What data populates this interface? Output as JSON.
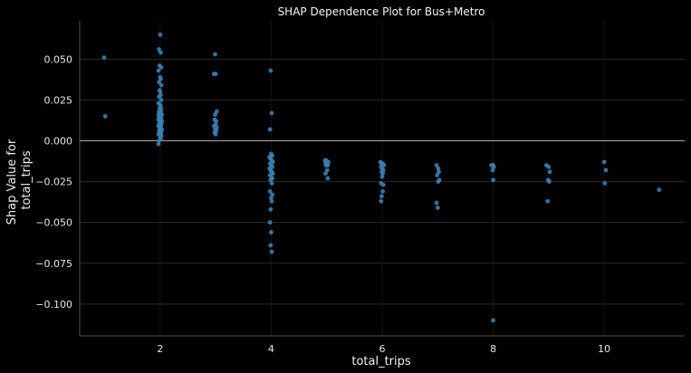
{
  "chart_data": {
    "type": "scatter",
    "title": "SHAP Dependence Plot for Bus+Metro",
    "xlabel": "total_trips",
    "ylabel_lines": [
      "Shap Value for",
      "total_trips"
    ],
    "xlim": [
      0.55,
      11.45
    ],
    "ylim": [
      -0.1195,
      0.0735
    ],
    "xticks": [
      2,
      4,
      6,
      8,
      10
    ],
    "yticks": [
      0.05,
      0.025,
      0.0,
      -0.025,
      -0.05,
      -0.075,
      -0.1
    ],
    "ytick_labels": [
      "0.050",
      "0.025",
      "0.000",
      "−0.025",
      "−0.050",
      "−0.075",
      "−0.100"
    ],
    "grid": true,
    "zero_line": true,
    "colors": {
      "background": "#000000",
      "point": "#3a7fb0",
      "grid": "#2a2a2a",
      "axis": "#555555",
      "zero_line": "#aaaaaa"
    },
    "points": [
      [
        0.99,
        0.051
      ],
      [
        1.01,
        0.015
      ],
      [
        2.0,
        0.065
      ],
      [
        1.98,
        0.056
      ],
      [
        2.01,
        0.054
      ],
      [
        1.99,
        0.046
      ],
      [
        2.02,
        0.045
      ],
      [
        1.97,
        0.043
      ],
      [
        2.0,
        0.039
      ],
      [
        2.01,
        0.038
      ],
      [
        1.98,
        0.036
      ],
      [
        2.02,
        0.034
      ],
      [
        1.99,
        0.031
      ],
      [
        2.0,
        0.03
      ],
      [
        2.01,
        0.028
      ],
      [
        1.98,
        0.027
      ],
      [
        2.02,
        0.025
      ],
      [
        1.97,
        0.023
      ],
      [
        2.0,
        0.022
      ],
      [
        2.01,
        0.021
      ],
      [
        1.99,
        0.02
      ],
      [
        2.02,
        0.019
      ],
      [
        1.98,
        0.018
      ],
      [
        2.0,
        0.017
      ],
      [
        2.01,
        0.017
      ],
      [
        1.97,
        0.016
      ],
      [
        2.03,
        0.016
      ],
      [
        1.99,
        0.015
      ],
      [
        2.0,
        0.015
      ],
      [
        2.02,
        0.014
      ],
      [
        1.98,
        0.014
      ],
      [
        2.01,
        0.013
      ],
      [
        1.97,
        0.013
      ],
      [
        2.0,
        0.012
      ],
      [
        2.03,
        0.012
      ],
      [
        1.99,
        0.011
      ],
      [
        2.01,
        0.011
      ],
      [
        1.98,
        0.01
      ],
      [
        2.02,
        0.01
      ],
      [
        2.0,
        0.009
      ],
      [
        1.97,
        0.009
      ],
      [
        2.01,
        0.008
      ],
      [
        1.99,
        0.008
      ],
      [
        2.03,
        0.007
      ],
      [
        2.0,
        0.007
      ],
      [
        1.98,
        0.006
      ],
      [
        2.02,
        0.006
      ],
      [
        2.01,
        0.005
      ],
      [
        1.99,
        0.005
      ],
      [
        2.0,
        0.004
      ],
      [
        1.97,
        0.004
      ],
      [
        2.02,
        0.003
      ],
      [
        2.0,
        0.002
      ],
      [
        2.01,
        0.001
      ],
      [
        1.98,
        0.0
      ],
      [
        1.97,
        -0.002
      ],
      [
        2.99,
        0.053
      ],
      [
        2.97,
        0.041
      ],
      [
        3.0,
        0.041
      ],
      [
        3.02,
        0.018
      ],
      [
        2.99,
        0.016
      ],
      [
        2.98,
        0.013
      ],
      [
        3.01,
        0.012
      ],
      [
        3.0,
        0.01
      ],
      [
        2.97,
        0.009
      ],
      [
        3.02,
        0.008
      ],
      [
        2.99,
        0.007
      ],
      [
        3.01,
        0.006
      ],
      [
        2.98,
        0.005
      ],
      [
        3.0,
        0.004
      ],
      [
        3.99,
        0.043
      ],
      [
        4.01,
        0.017
      ],
      [
        3.98,
        0.007
      ],
      [
        4.0,
        -0.008
      ],
      [
        4.02,
        -0.009
      ],
      [
        3.97,
        -0.01
      ],
      [
        3.99,
        -0.011
      ],
      [
        4.01,
        -0.012
      ],
      [
        4.03,
        -0.013
      ],
      [
        3.98,
        -0.014
      ],
      [
        4.0,
        -0.015
      ],
      [
        4.02,
        -0.016
      ],
      [
        3.97,
        -0.017
      ],
      [
        3.99,
        -0.018
      ],
      [
        4.01,
        -0.019
      ],
      [
        4.03,
        -0.02
      ],
      [
        3.98,
        -0.021
      ],
      [
        4.0,
        -0.022
      ],
      [
        4.02,
        -0.023
      ],
      [
        3.99,
        -0.024
      ],
      [
        4.01,
        -0.026
      ],
      [
        3.98,
        -0.031
      ],
      [
        4.02,
        -0.033
      ],
      [
        4.0,
        -0.035
      ],
      [
        4.01,
        -0.037
      ],
      [
        3.99,
        -0.042
      ],
      [
        3.98,
        -0.05
      ],
      [
        4.0,
        -0.056
      ],
      [
        3.99,
        -0.064
      ],
      [
        4.01,
        -0.068
      ],
      [
        4.97,
        -0.012
      ],
      [
        4.99,
        -0.012
      ],
      [
        5.01,
        -0.013
      ],
      [
        5.03,
        -0.013
      ],
      [
        4.98,
        -0.014
      ],
      [
        5.0,
        -0.014
      ],
      [
        5.02,
        -0.015
      ],
      [
        4.99,
        -0.015
      ],
      [
        5.01,
        -0.018
      ],
      [
        4.98,
        -0.02
      ],
      [
        5.02,
        -0.023
      ],
      [
        5.97,
        -0.013
      ],
      [
        5.99,
        -0.014
      ],
      [
        6.01,
        -0.014
      ],
      [
        6.03,
        -0.015
      ],
      [
        5.98,
        -0.016
      ],
      [
        6.0,
        -0.017
      ],
      [
        6.02,
        -0.018
      ],
      [
        5.99,
        -0.019
      ],
      [
        6.01,
        -0.02
      ],
      [
        6.0,
        -0.022
      ],
      [
        5.98,
        -0.026
      ],
      [
        6.02,
        -0.027
      ],
      [
        6.01,
        -0.031
      ],
      [
        5.99,
        -0.034
      ],
      [
        5.98,
        -0.037
      ],
      [
        6.98,
        -0.015
      ],
      [
        7.01,
        -0.017
      ],
      [
        7.02,
        -0.019
      ],
      [
        6.99,
        -0.021
      ],
      [
        7.03,
        -0.024
      ],
      [
        7.01,
        -0.025
      ],
      [
        6.98,
        -0.038
      ],
      [
        7.0,
        -0.041
      ],
      [
        7.97,
        -0.015
      ],
      [
        8.0,
        -0.015
      ],
      [
        8.01,
        -0.016
      ],
      [
        7.99,
        -0.018
      ],
      [
        8.0,
        -0.024
      ],
      [
        8.0,
        -0.11
      ],
      [
        8.96,
        -0.015
      ],
      [
        9.0,
        -0.016
      ],
      [
        9.02,
        -0.019
      ],
      [
        8.99,
        -0.024
      ],
      [
        9.01,
        -0.025
      ],
      [
        8.98,
        -0.037
      ],
      [
        10.0,
        -0.013
      ],
      [
        10.03,
        -0.018
      ],
      [
        10.01,
        -0.026
      ],
      [
        10.99,
        -0.03
      ]
    ]
  }
}
